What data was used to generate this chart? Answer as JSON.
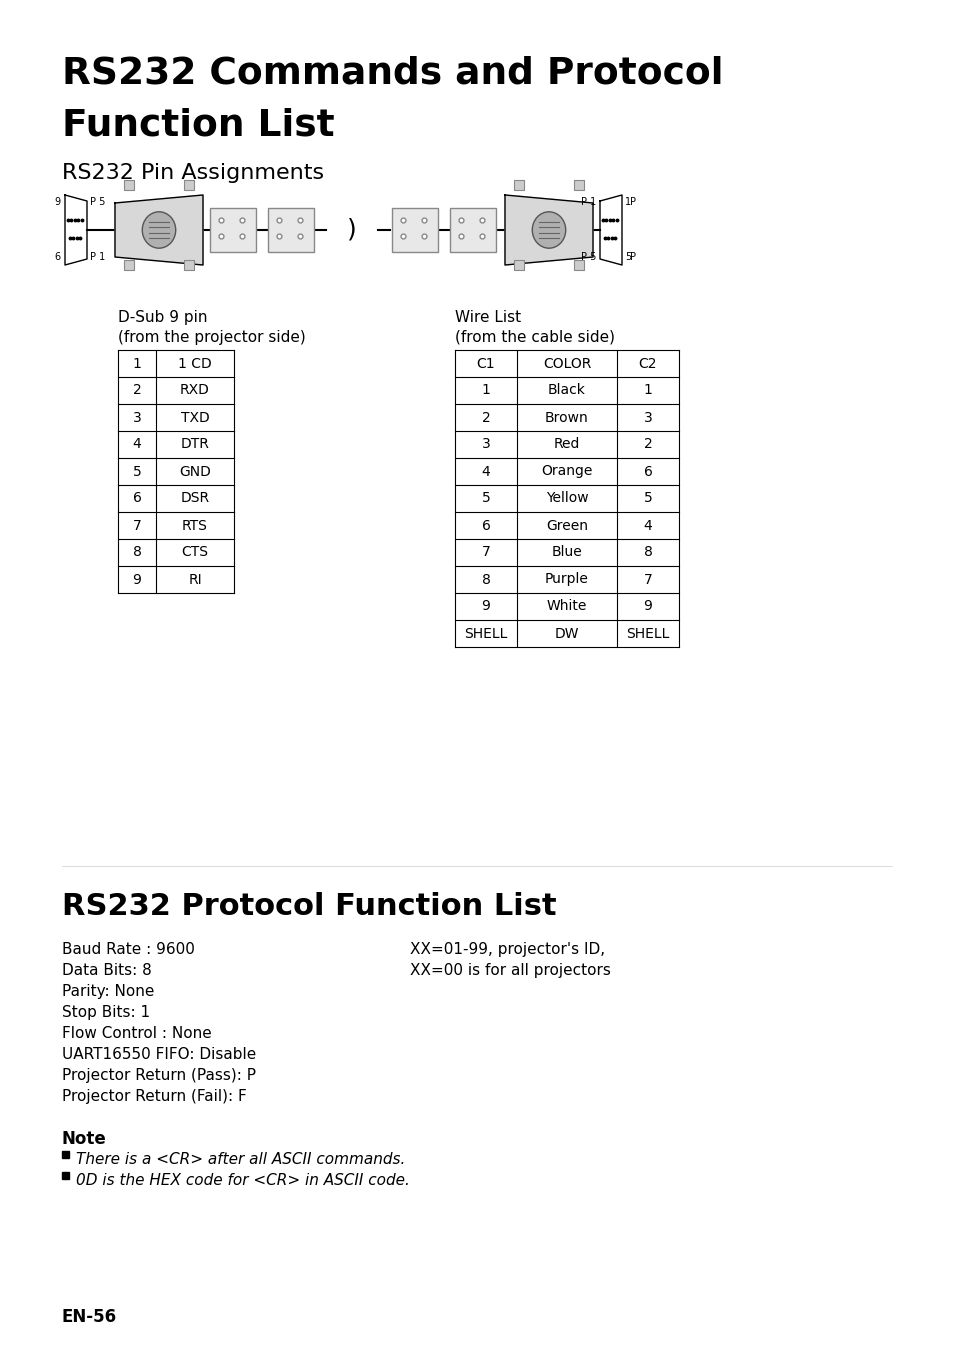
{
  "title_line1": "RS232 Commands and Protocol",
  "title_line2": "Function List",
  "subtitle": "RS232 Pin Assignments",
  "dsub_label": "D-Sub 9 pin",
  "dsub_sublabel": "(from the projector side)",
  "wire_label": "Wire List",
  "wire_sublabel": "(from the cable side)",
  "dsub_table_rows": [
    [
      "1",
      "1 CD"
    ],
    [
      "2",
      "RXD"
    ],
    [
      "3",
      "TXD"
    ],
    [
      "4",
      "DTR"
    ],
    [
      "5",
      "GND"
    ],
    [
      "6",
      "DSR"
    ],
    [
      "7",
      "RTS"
    ],
    [
      "8",
      "CTS"
    ],
    [
      "9",
      "RI"
    ]
  ],
  "wire_table_headers": [
    "C1",
    "COLOR",
    "C2"
  ],
  "wire_table_rows": [
    [
      "1",
      "Black",
      "1"
    ],
    [
      "2",
      "Brown",
      "3"
    ],
    [
      "3",
      "Red",
      "2"
    ],
    [
      "4",
      "Orange",
      "6"
    ],
    [
      "5",
      "Yellow",
      "5"
    ],
    [
      "6",
      "Green",
      "4"
    ],
    [
      "7",
      "Blue",
      "8"
    ],
    [
      "8",
      "Purple",
      "7"
    ],
    [
      "9",
      "White",
      "9"
    ],
    [
      "SHELL",
      "DW",
      "SHELL"
    ]
  ],
  "protocol_title": "RS232 Protocol Function List",
  "protocol_lines_left": [
    "Baud Rate : 9600",
    "Data Bits: 8",
    "Parity: None",
    "Stop Bits: 1",
    "Flow Control : None",
    "UART16550 FIFO: Disable",
    "Projector Return (Pass): P",
    "Projector Return (Fail): F"
  ],
  "protocol_lines_right": [
    "XX=01-99, projector's ID,",
    "XX=00 is for all projectors"
  ],
  "note_title": "Note",
  "note_bullets": [
    "There is a <CR> after all ASCII commands.",
    "0D is the HEX code for <CR> in ASCII code."
  ],
  "page_number": "EN-56",
  "bg_color": "#ffffff"
}
